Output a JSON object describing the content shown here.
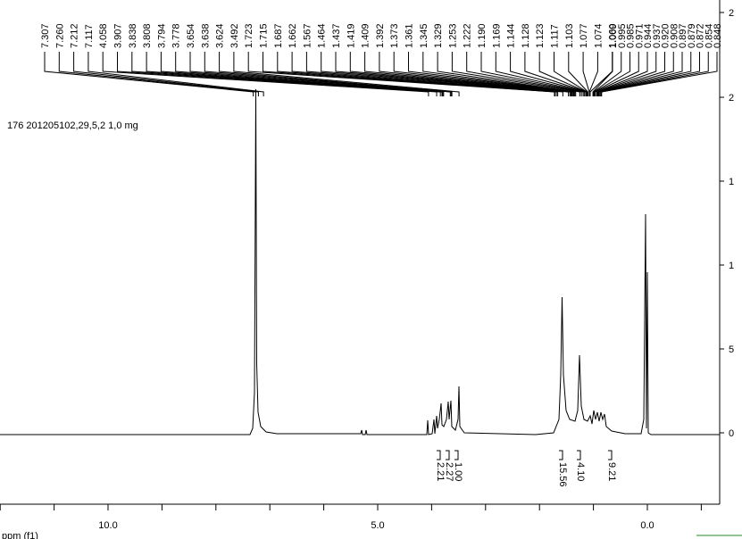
{
  "title": "176 201205102,29,5,2 1,0 mg",
  "peak_labels": [
    "7.307",
    "7.260",
    "7.212",
    "7.117",
    "4.058",
    "3.907",
    "3.838",
    "3.808",
    "3.794",
    "3.778",
    "3.654",
    "3.638",
    "3.624",
    "3.492",
    "1.723",
    "1.715",
    "1.687",
    "1.662",
    "1.567",
    "1.464",
    "1.437",
    "1.419",
    "1.409",
    "1.392",
    "1.373",
    "1.361",
    "1.345",
    "1.329",
    "1.253",
    "1.222",
    "1.190",
    "1.169",
    "1.144",
    "1.128",
    "1.123",
    "1.117",
    "1.103",
    "1.077",
    "1.074",
    "1.060",
    "1.009",
    "0.995",
    "0.985",
    "0.971",
    "0.944",
    "0.937",
    "0.920",
    "0.908",
    "0.897",
    "0.879",
    "0.872",
    "0.854",
    "0.848"
  ],
  "integrals": [
    {
      "label": "2.21"
    },
    {
      "label": "2.27"
    },
    {
      "label": "1.00"
    },
    {
      "label": "15.56"
    },
    {
      "label": "4.10"
    },
    {
      "label": "9.21"
    }
  ],
  "x_axis": {
    "label": "ppm (f1)",
    "ticks": [
      "10.0",
      "5.0",
      "0.0"
    ]
  },
  "right_axis_labels": [
    "2",
    "2",
    "1",
    "1",
    "5",
    "0"
  ]
}
